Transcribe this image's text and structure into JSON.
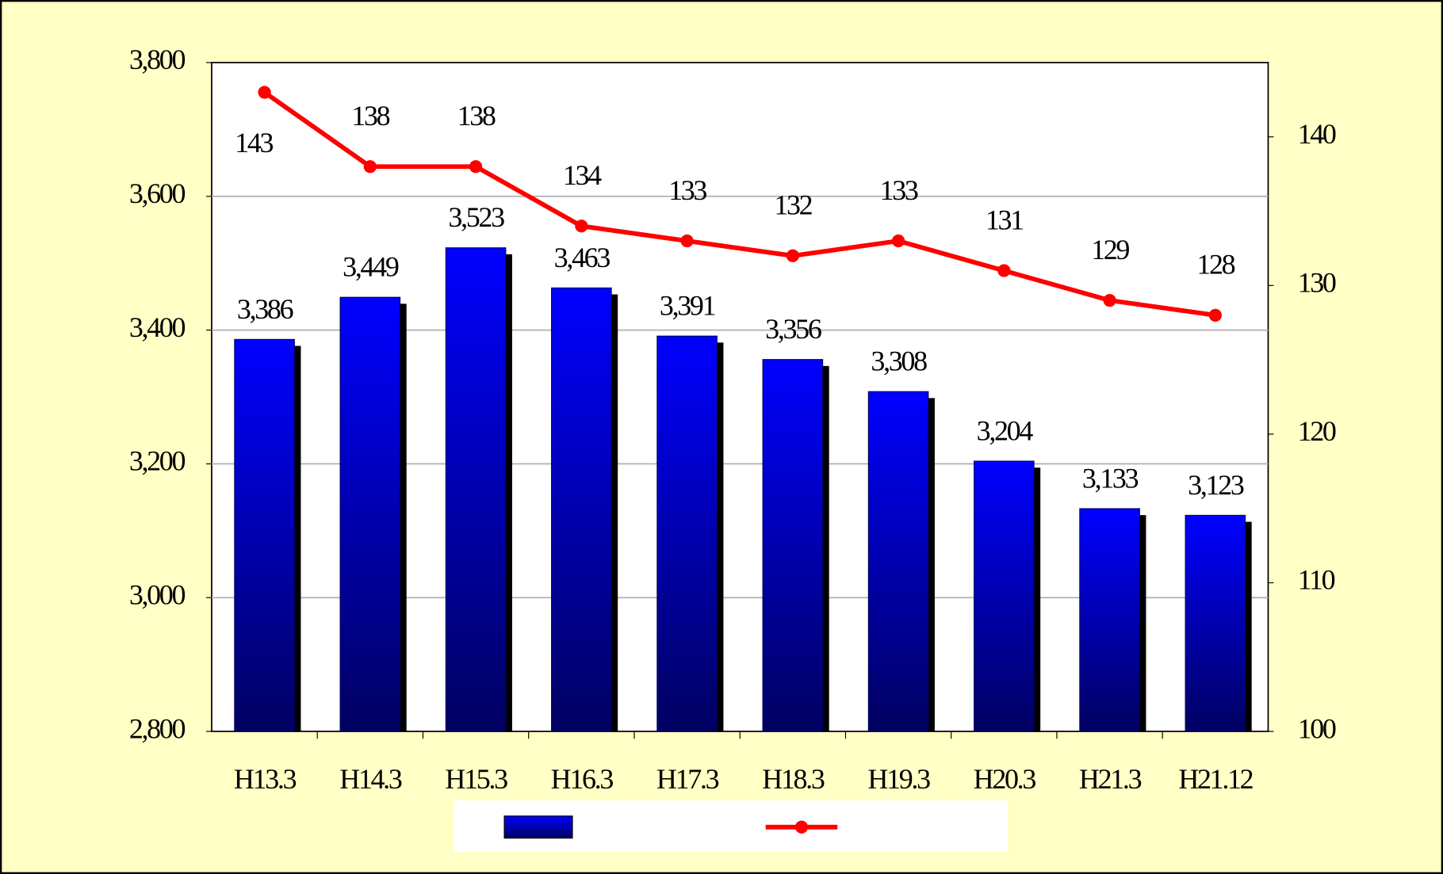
{
  "chart_data": {
    "type": "bar_line",
    "categories": [
      "H13.3",
      "H14.3",
      "H15.3",
      "H16.3",
      "H17.3",
      "H18.3",
      "H19.3",
      "H20.3",
      "H21.3",
      "H21.12"
    ],
    "series": [
      {
        "type": "bar",
        "color": "#0000ff",
        "values": [
          3386,
          3449,
          3523,
          3463,
          3391,
          3356,
          3308,
          3204,
          3133,
          3123
        ],
        "value_labels": [
          "3,386",
          "3,449",
          "3,523",
          "3,463",
          "3,391",
          "3,356",
          "3,308",
          "3,204",
          "3,133",
          "3,123"
        ]
      },
      {
        "type": "line",
        "axis": "y2",
        "color": "#ff0000",
        "values": [
          143,
          138,
          138,
          134,
          133,
          132,
          133,
          131,
          129,
          128
        ]
      }
    ],
    "ylim": [
      2800,
      3800
    ],
    "yticks": [
      {
        "value": 2800,
        "label": "2,800"
      },
      {
        "value": 3000,
        "label": "3,000"
      },
      {
        "value": 3200,
        "label": "3,200"
      },
      {
        "value": 3400,
        "label": "3,400"
      },
      {
        "value": 3600,
        "label": "3,600"
      },
      {
        "value": 3800,
        "label": "3,800"
      }
    ],
    "y2lim": [
      100,
      145
    ],
    "y2ticks": [
      100,
      110,
      120,
      130,
      140
    ],
    "grid": true,
    "legend": "bottom"
  }
}
